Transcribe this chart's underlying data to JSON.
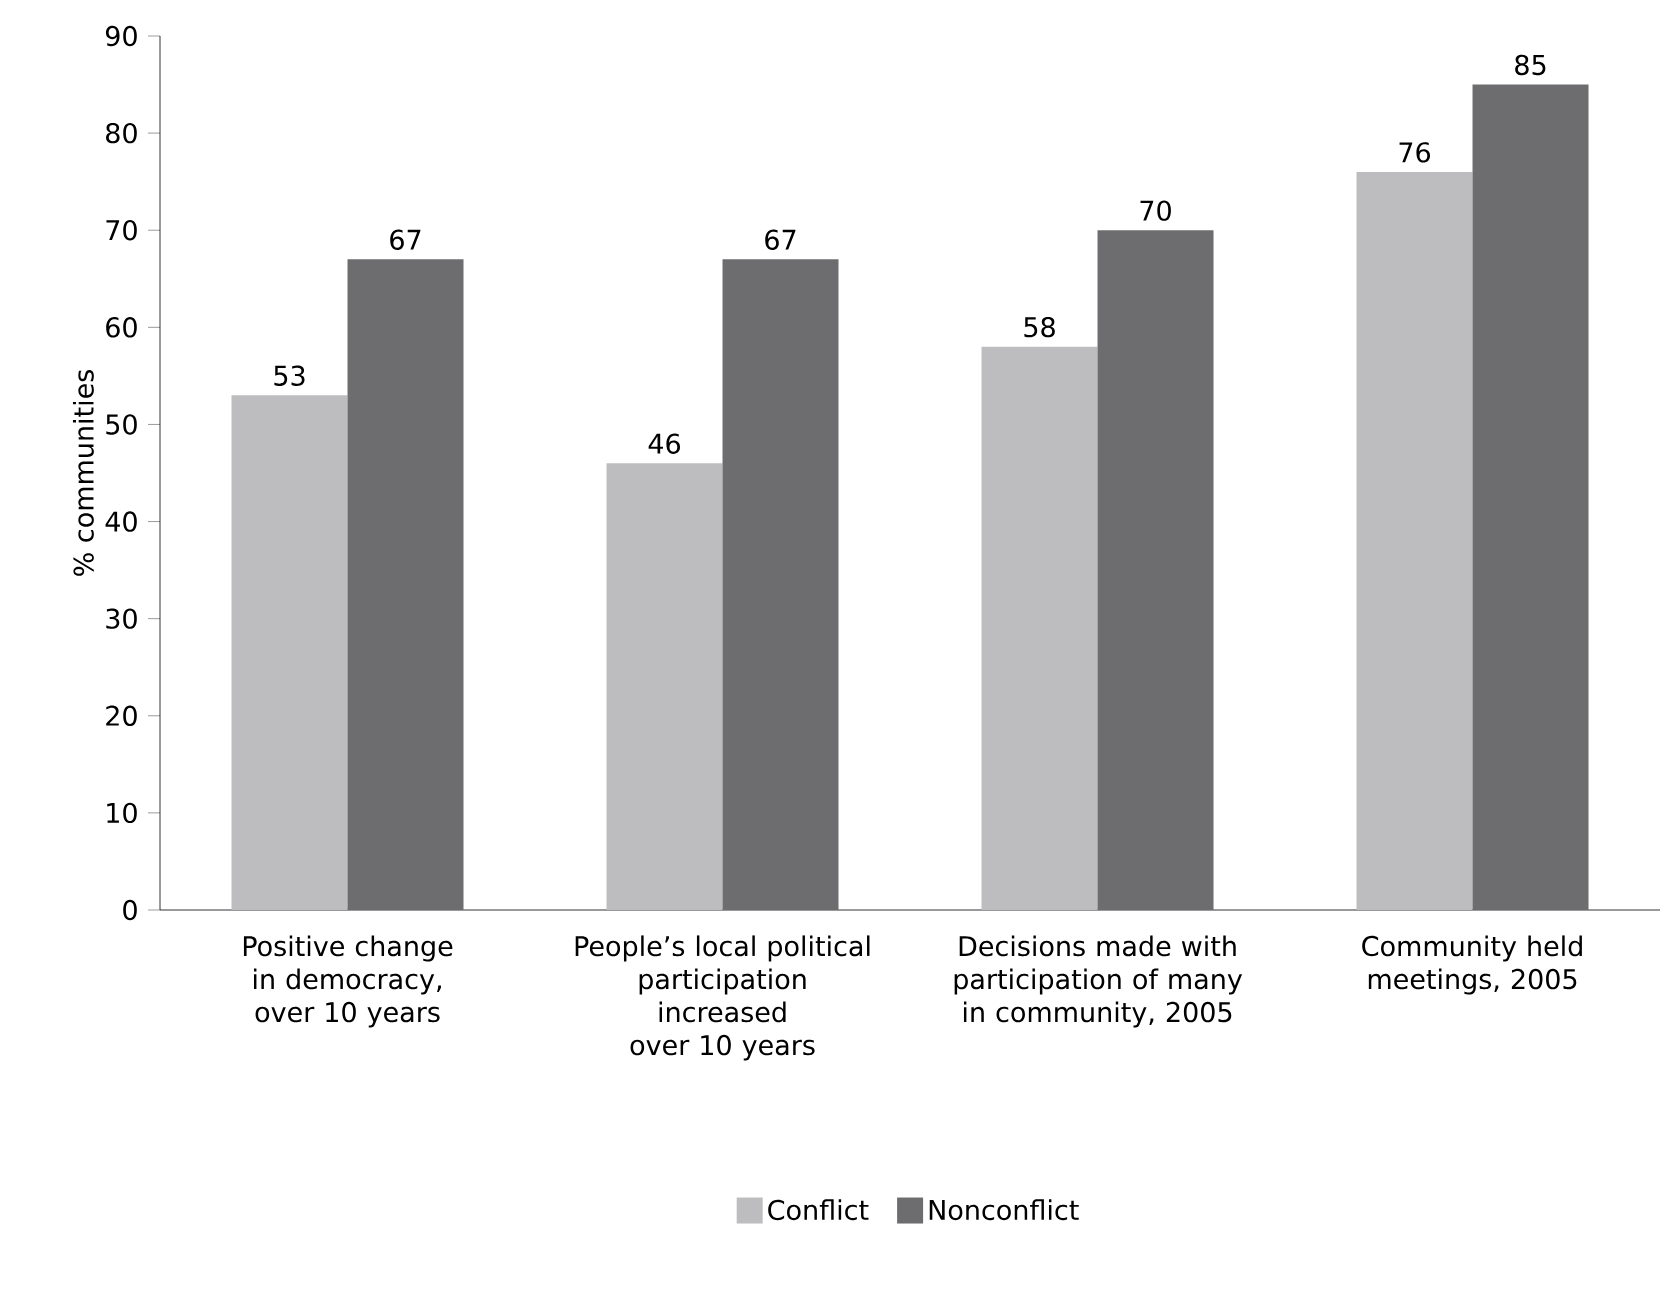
{
  "chart_data": {
    "type": "bar",
    "ylabel": "% communities",
    "categories": [
      "Positive change in democracy, over 10 years",
      "People’s local political participation increased over 10 years",
      "Decisions made with participation of many in community, 2005",
      "Community held meetings, 2005"
    ],
    "series": [
      {
        "name": "Conflict",
        "color": "#bdbdbf",
        "values": [
          53,
          46,
          58,
          76
        ]
      },
      {
        "name": "Nonconflict",
        "color": "#6d6d6f",
        "values": [
          67,
          67,
          70,
          85
        ]
      }
    ],
    "ylim": [
      0,
      90
    ],
    "yticks": [
      0,
      10,
      20,
      30,
      40,
      50,
      60,
      70,
      80,
      90
    ],
    "data_labels": true,
    "legend": "bottom",
    "grid": false
  }
}
